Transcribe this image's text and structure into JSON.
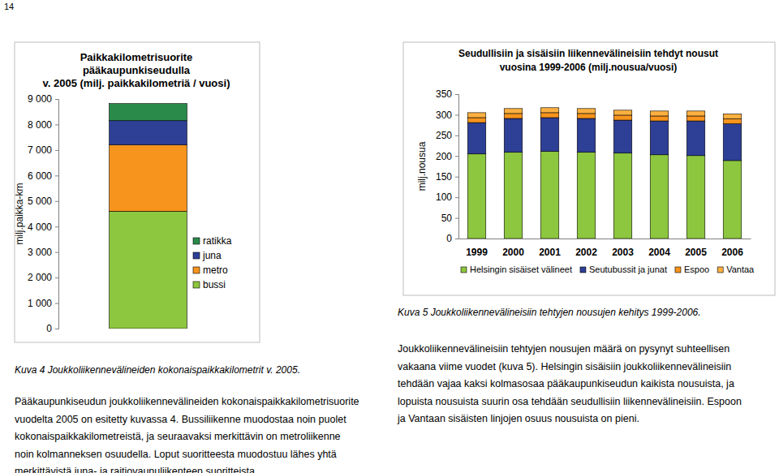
{
  "page_number": "14",
  "chart_data": [
    {
      "type": "bar",
      "title": "Paikkakilometrisuorite\npääkaupunkiseudulla\nv. 2005 (milj. paikkakilometriä / vuosi)",
      "y_label": "milj.paikka-km",
      "categories": [
        null
      ],
      "series": [
        {
          "name": "bussi",
          "color": "#8dc63f",
          "values": [
            4600
          ]
        },
        {
          "name": "metro",
          "color": "#f7941d",
          "values": [
            2600
          ]
        },
        {
          "name": "juna",
          "color": "#2e3f96",
          "values": [
            950
          ]
        },
        {
          "name": "ratikka",
          "color": "#2a8a4a",
          "values": [
            670
          ]
        }
      ],
      "ylim": [
        0,
        9000
      ],
      "yticks": [
        0,
        {
          "value": 1000,
          "label": "1 000"
        },
        {
          "value": 2000,
          "label": "2 000"
        },
        {
          "value": 3000,
          "label": "3 000"
        },
        {
          "value": 4000,
          "label": "4 000"
        },
        {
          "value": 5000,
          "label": "5 000"
        },
        {
          "value": 6000,
          "label": "6 000"
        },
        {
          "value": 7000,
          "label": "7 000"
        },
        {
          "value": 8000,
          "label": "8 000"
        },
        {
          "value": 9000,
          "label": "9 000"
        }
      ],
      "stacked": true,
      "legend": "right",
      "tick_labels": "y"
    },
    {
      "type": "bar",
      "title": "Seudullisiin ja sisäisiin liikennevälineisiin tehdyt nousut\nvuosina 1999-2006 (milj.nousua/vuosi)",
      "y_label": "milj.nousua",
      "categories": [
        "1999",
        "2000",
        "2001",
        "2002",
        "2003",
        "2004",
        "2005",
        "2006"
      ],
      "series": [
        {
          "name": "Helsingin sisäiset välineet",
          "color": "#8dc63f",
          "values": [
            205,
            209,
            211,
            209,
            207,
            203,
            201,
            189
          ]
        },
        {
          "name": "Seutubussit ja junat",
          "color": "#2e3f96",
          "values": [
            76,
            82,
            82,
            82,
            80,
            82,
            84,
            89
          ]
        },
        {
          "name": "Espoo",
          "color": "#f7941d",
          "values": [
            12,
            12,
            12,
            12,
            12,
            12,
            12,
            12
          ]
        },
        {
          "name": "Vantaa",
          "color": "#fbb040",
          "values": [
            12,
            12,
            12,
            12,
            12,
            12,
            12,
            12
          ]
        }
      ],
      "ylim": [
        0,
        350
      ],
      "yticks": [
        0,
        50,
        100,
        150,
        200,
        250,
        300,
        350
      ],
      "stacked": true,
      "legend": "bottom"
    }
  ],
  "captions": [
    "Kuva 4 Joukkoliikennevälineiden kokonaispaikkakilometrit v. 2005.",
    "Kuva 5 Joukkoliikennevälineisiin tehtyjen nousujen kehitys 1999-2006."
  ],
  "paragraphs": [
    [
      "Pääkaupunkiseudun joukkoliikennevälineiden kokonaispaikkakilometrisuorite",
      "vuodelta 2005 on esitetty kuvassa 4. Bussiliikenne muodostaa noin puolet",
      "kokonaispaikkakilometreistä, ja seuraavaksi merkittävin on metroliikenne",
      "noin kolmanneksen osuudella. Loput suoritteesta muodostuu lähes yhtä",
      "merkittävistä juna- ja raitiovaunuliikenteen suoritteista."
    ],
    [
      "Joukkoliikennevälineisiin tehtyjen nousujen määrä on pysynyt suhteellisen",
      "vakaana viime vuodet (kuva 5). Helsingin sisäisiin joukkoliikennevälineisiin",
      "tehdään vajaa kaksi kolmasosaa pääkaupunkiseudun kaikista nousuista, ja",
      "lopuista nousuista suurin osa tehdään seudullisiin liikennevälineisiin. Espoon",
      "ja Vantaan sisäisten linjojen osuus nousuista on pieni."
    ]
  ]
}
